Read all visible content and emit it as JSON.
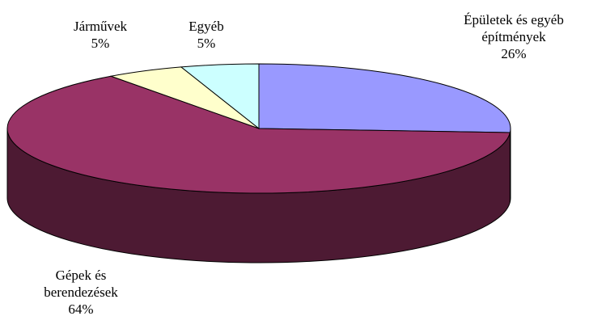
{
  "chart_data": {
    "type": "pie",
    "style": "3d",
    "title": "",
    "slices": [
      {
        "label_lines": [
          "Épületek és egyéb",
          "építmények"
        ],
        "value_label": "26%",
        "value": 26,
        "color": "#9999ff"
      },
      {
        "label_lines": [
          "Gépek és",
          "berendezések"
        ],
        "value_label": "64%",
        "value": 64,
        "color": "#993366"
      },
      {
        "label_lines": [
          "Járművek"
        ],
        "value_label": "5%",
        "value": 5,
        "color": "#ffffcc"
      },
      {
        "label_lines": [
          "Egyéb"
        ],
        "value_label": "5%",
        "value": 5,
        "color": "#ccffff"
      }
    ],
    "side_colors": [
      "#4a4a7a",
      "#4d1a33",
      "#7a7a60",
      "#5a7a7a"
    ]
  }
}
